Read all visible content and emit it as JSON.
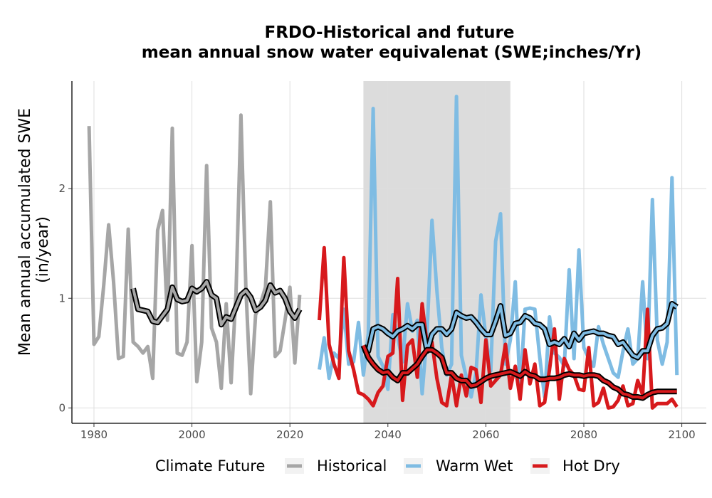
{
  "chart_data": {
    "type": "line",
    "title": "FRDO-Historical and future",
    "subtitle": "mean annual snow water equivalenat (SWE;inches/Yr)",
    "xlabel": "",
    "ylabel_line1": "Mean annual accumulated SWE",
    "ylabel_line2": "(in/year)",
    "xlim": [
      1975.5,
      2105
    ],
    "ylim": [
      -0.14,
      2.98
    ],
    "x_ticks": [
      1980,
      2000,
      2020,
      2040,
      2060,
      2080,
      2100
    ],
    "y_ticks": [
      0,
      1,
      2
    ],
    "grid": true,
    "shaded_period": [
      2035,
      2065
    ],
    "legend": {
      "title": "Climate Future",
      "position": "bottom",
      "entries": [
        "Historical",
        "Warm Wet",
        "Hot Dry"
      ]
    },
    "colors": {
      "Historical": "#a6a6a6",
      "Warm Wet": "#7fbce3",
      "Hot Dry": "#d7191c",
      "shade": "#dcdcdc",
      "grid": "#dedede",
      "smooth": "#000000"
    },
    "series": [
      {
        "name": "Historical",
        "x": [
          1979,
          1980,
          1981,
          1982,
          1983,
          1984,
          1985,
          1986,
          1987,
          1988,
          1989,
          1990,
          1991,
          1992,
          1993,
          1994,
          1995,
          1996,
          1997,
          1998,
          1999,
          2000,
          2001,
          2002,
          2003,
          2004,
          2005,
          2006,
          2007,
          2008,
          2009,
          2010,
          2011,
          2012,
          2013,
          2014,
          2015,
          2016,
          2017,
          2018,
          2019,
          2020,
          2021,
          2022
        ],
        "y": [
          2.57,
          0.58,
          0.65,
          1.12,
          1.67,
          1.15,
          0.45,
          0.47,
          1.63,
          0.6,
          0.56,
          0.5,
          0.56,
          0.27,
          1.62,
          1.8,
          0.8,
          2.55,
          0.5,
          0.48,
          0.6,
          1.48,
          0.24,
          0.6,
          2.21,
          0.73,
          0.6,
          0.18,
          0.95,
          0.23,
          1.05,
          2.67,
          1.1,
          0.13,
          0.85,
          0.95,
          1.1,
          1.88,
          0.47,
          0.52,
          0.8,
          1.1,
          0.41,
          1.03
        ]
      },
      {
        "name": "Historical",
        "role": "rolling mean",
        "x": [
          1988,
          1989,
          1990,
          1991,
          1992,
          1993,
          1994,
          1995,
          1996,
          1997,
          1998,
          1999,
          2000,
          2001,
          2002,
          2003,
          2004,
          2005,
          2006,
          2007,
          2008,
          2009,
          2010,
          2011,
          2012,
          2013,
          2014,
          2015,
          2016,
          2017,
          2018,
          2019,
          2020,
          2021,
          2022
        ],
        "y": [
          1.09,
          0.9,
          0.89,
          0.88,
          0.79,
          0.78,
          0.84,
          0.9,
          1.1,
          0.99,
          0.97,
          0.98,
          1.09,
          1.06,
          1.09,
          1.15,
          1.03,
          1.0,
          0.76,
          0.83,
          0.81,
          0.92,
          1.03,
          1.07,
          1.01,
          0.89,
          0.92,
          0.98,
          1.12,
          1.05,
          1.07,
          1.0,
          0.88,
          0.82,
          0.9
        ]
      },
      {
        "name": "Warm Wet",
        "x": [
          2026,
          2027,
          2028,
          2029,
          2030,
          2031,
          2032,
          2033,
          2034,
          2035,
          2036,
          2037,
          2038,
          2039,
          2040,
          2041,
          2042,
          2043,
          2044,
          2045,
          2046,
          2047,
          2048,
          2049,
          2050,
          2051,
          2052,
          2053,
          2054,
          2055,
          2056,
          2057,
          2058,
          2059,
          2060,
          2061,
          2062,
          2063,
          2064,
          2065,
          2066,
          2067,
          2068,
          2069,
          2070,
          2071,
          2072,
          2073,
          2074,
          2075,
          2076,
          2077,
          2078,
          2079,
          2080,
          2081,
          2082,
          2083,
          2084,
          2085,
          2086,
          2087,
          2088,
          2089,
          2090,
          2091,
          2092,
          2093,
          2094,
          2095,
          2096,
          2097,
          2098,
          2099
        ],
        "y": [
          0.35,
          0.64,
          0.27,
          0.5,
          0.45,
          0.9,
          0.4,
          0.42,
          0.78,
          0.3,
          0.68,
          2.73,
          0.47,
          0.38,
          0.17,
          0.85,
          0.65,
          0.42,
          0.95,
          0.7,
          0.8,
          0.13,
          0.68,
          1.71,
          1.07,
          0.55,
          0.3,
          0.4,
          2.84,
          0.48,
          0.28,
          0.1,
          0.32,
          1.03,
          0.65,
          0.34,
          1.52,
          1.77,
          0.4,
          0.62,
          1.15,
          0.15,
          0.9,
          0.91,
          0.9,
          0.46,
          0.1,
          0.83,
          0.5,
          0.46,
          0.38,
          1.26,
          0.45,
          1.44,
          0.55,
          0.45,
          0.38,
          0.74,
          0.58,
          0.45,
          0.32,
          0.28,
          0.52,
          0.72,
          0.4,
          0.45,
          1.15,
          0.45,
          1.9,
          0.62,
          0.4,
          0.6,
          2.1,
          0.3
        ]
      },
      {
        "name": "Warm Wet",
        "role": "rolling mean",
        "x": [
          2035,
          2036,
          2037,
          2038,
          2039,
          2040,
          2041,
          2042,
          2043,
          2044,
          2045,
          2046,
          2047,
          2048,
          2049,
          2050,
          2051,
          2052,
          2053,
          2054,
          2055,
          2056,
          2057,
          2058,
          2059,
          2060,
          2061,
          2062,
          2063,
          2064,
          2065,
          2066,
          2067,
          2068,
          2069,
          2070,
          2071,
          2072,
          2073,
          2074,
          2075,
          2076,
          2077,
          2078,
          2079,
          2080,
          2081,
          2082,
          2083,
          2084,
          2085,
          2086,
          2087,
          2088,
          2089,
          2090,
          2091,
          2092,
          2093,
          2094,
          2095,
          2096,
          2097,
          2098,
          2099
        ],
        "y": [
          0.5,
          0.52,
          0.72,
          0.74,
          0.72,
          0.68,
          0.65,
          0.7,
          0.72,
          0.75,
          0.72,
          0.76,
          0.76,
          0.52,
          0.67,
          0.72,
          0.72,
          0.67,
          0.72,
          0.87,
          0.84,
          0.82,
          0.83,
          0.78,
          0.72,
          0.67,
          0.67,
          0.79,
          0.93,
          0.66,
          0.68,
          0.77,
          0.78,
          0.84,
          0.82,
          0.77,
          0.76,
          0.72,
          0.58,
          0.6,
          0.58,
          0.63,
          0.56,
          0.68,
          0.62,
          0.68,
          0.69,
          0.7,
          0.68,
          0.68,
          0.66,
          0.65,
          0.58,
          0.6,
          0.54,
          0.48,
          0.46,
          0.52,
          0.52,
          0.66,
          0.72,
          0.73,
          0.77,
          0.95,
          0.92
        ]
      },
      {
        "name": "Hot Dry",
        "x": [
          2026,
          2027,
          2028,
          2029,
          2030,
          2031,
          2032,
          2033,
          2034,
          2035,
          2036,
          2037,
          2038,
          2039,
          2040,
          2041,
          2042,
          2043,
          2044,
          2045,
          2046,
          2047,
          2048,
          2049,
          2050,
          2051,
          2052,
          2053,
          2054,
          2055,
          2056,
          2057,
          2058,
          2059,
          2060,
          2061,
          2062,
          2063,
          2064,
          2065,
          2066,
          2067,
          2068,
          2069,
          2070,
          2071,
          2072,
          2073,
          2074,
          2075,
          2076,
          2077,
          2078,
          2079,
          2080,
          2081,
          2082,
          2083,
          2084,
          2085,
          2086,
          2087,
          2088,
          2089,
          2090,
          2091,
          2092,
          2093,
          2094,
          2095,
          2096,
          2097,
          2098,
          2099
        ],
        "y": [
          0.8,
          1.46,
          0.58,
          0.4,
          0.27,
          1.37,
          0.52,
          0.35,
          0.14,
          0.12,
          0.08,
          0.02,
          0.14,
          0.2,
          0.47,
          0.5,
          1.18,
          0.07,
          0.57,
          0.62,
          0.28,
          0.95,
          0.58,
          0.6,
          0.27,
          0.05,
          0.02,
          0.3,
          0.02,
          0.3,
          0.11,
          0.37,
          0.35,
          0.05,
          0.62,
          0.2,
          0.25,
          0.3,
          0.58,
          0.18,
          0.38,
          0.08,
          0.53,
          0.22,
          0.4,
          0.02,
          0.05,
          0.35,
          0.72,
          0.08,
          0.45,
          0.35,
          0.3,
          0.17,
          0.16,
          0.55,
          0.02,
          0.05,
          0.18,
          0.0,
          0.01,
          0.07,
          0.2,
          0.02,
          0.04,
          0.25,
          0.12,
          0.9,
          0.0,
          0.04,
          0.04,
          0.04,
          0.08,
          0.01
        ]
      },
      {
        "name": "Hot Dry",
        "role": "rolling mean",
        "x": [
          2035,
          2036,
          2037,
          2038,
          2039,
          2040,
          2041,
          2042,
          2043,
          2044,
          2045,
          2046,
          2047,
          2048,
          2049,
          2050,
          2051,
          2052,
          2053,
          2054,
          2055,
          2056,
          2057,
          2058,
          2059,
          2060,
          2061,
          2062,
          2063,
          2064,
          2065,
          2066,
          2067,
          2068,
          2069,
          2070,
          2071,
          2072,
          2073,
          2074,
          2075,
          2076,
          2077,
          2078,
          2079,
          2080,
          2081,
          2082,
          2083,
          2084,
          2085,
          2086,
          2087,
          2088,
          2089,
          2090,
          2091,
          2092,
          2093,
          2094,
          2095,
          2096,
          2097,
          2098,
          2099
        ],
        "y": [
          0.57,
          0.46,
          0.4,
          0.35,
          0.32,
          0.33,
          0.28,
          0.25,
          0.32,
          0.32,
          0.36,
          0.4,
          0.47,
          0.53,
          0.53,
          0.5,
          0.46,
          0.32,
          0.32,
          0.27,
          0.25,
          0.25,
          0.2,
          0.21,
          0.24,
          0.27,
          0.29,
          0.3,
          0.31,
          0.32,
          0.33,
          0.31,
          0.29,
          0.33,
          0.3,
          0.29,
          0.26,
          0.26,
          0.27,
          0.27,
          0.28,
          0.3,
          0.31,
          0.3,
          0.3,
          0.29,
          0.3,
          0.3,
          0.29,
          0.25,
          0.23,
          0.19,
          0.17,
          0.13,
          0.12,
          0.1,
          0.1,
          0.09,
          0.12,
          0.14,
          0.15,
          0.15,
          0.15,
          0.15,
          0.15
        ]
      }
    ]
  }
}
